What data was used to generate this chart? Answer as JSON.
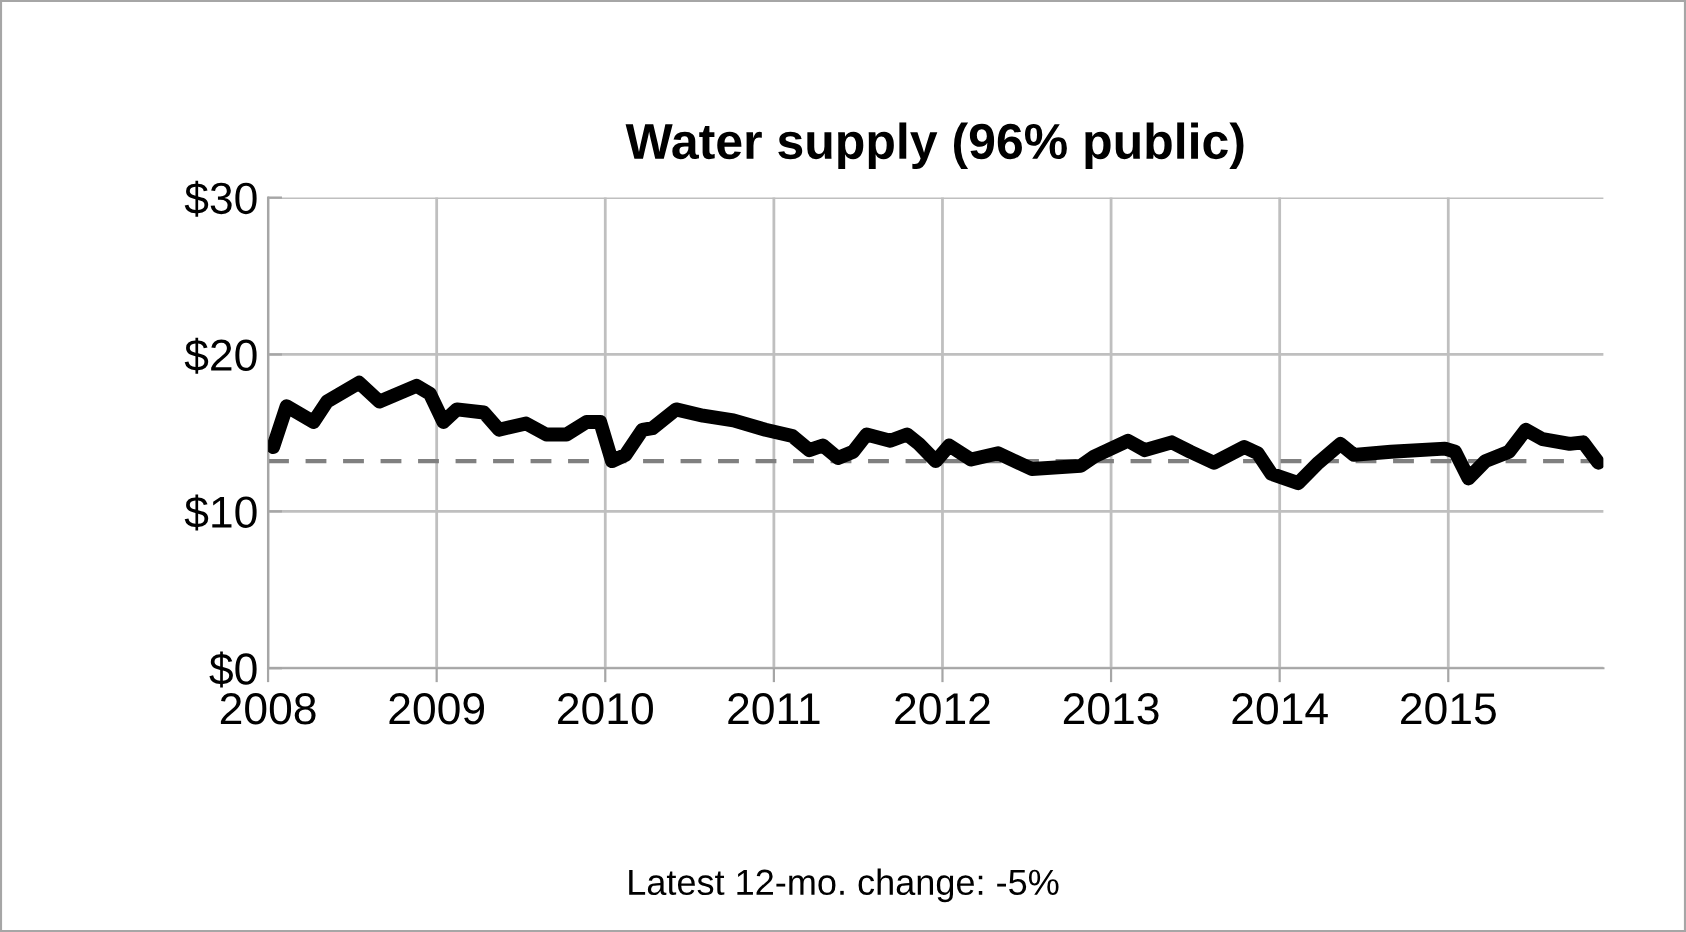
{
  "chart_data": {
    "type": "line",
    "title": "Water supply (96% public)",
    "x": [
      2008.03,
      2008.11,
      2008.27,
      2008.35,
      2008.54,
      2008.66,
      2008.88,
      2008.96,
      2009.04,
      2009.12,
      2009.28,
      2009.37,
      2009.53,
      2009.65,
      2009.77,
      2009.89,
      2009.97,
      2010.04,
      2010.12,
      2010.22,
      2010.28,
      2010.42,
      2010.58,
      2010.76,
      2010.95,
      2011.11,
      2011.21,
      2011.29,
      2011.38,
      2011.47,
      2011.55,
      2011.69,
      2011.79,
      2011.86,
      2011.96,
      2012.04,
      2012.17,
      2012.33,
      2012.53,
      2012.82,
      2012.9,
      2013.1,
      2013.2,
      2013.36,
      2013.47,
      2013.61,
      2013.79,
      2013.87,
      2013.95,
      2014.11,
      2014.23,
      2014.36,
      2014.44,
      2014.66,
      2014.98,
      2015.04,
      2015.12,
      2015.22,
      2015.36,
      2015.46,
      2015.56,
      2015.72,
      2015.8,
      2015.89
    ],
    "series": [
      {
        "color": "#000000",
        "values": [
          14.1,
          16.7,
          15.7,
          17.0,
          18.2,
          17.0,
          18.0,
          17.5,
          15.7,
          16.5,
          16.3,
          15.2,
          15.6,
          14.9,
          14.9,
          15.7,
          15.7,
          13.2,
          13.6,
          15.2,
          15.3,
          16.5,
          16.1,
          15.8,
          15.2,
          14.8,
          13.9,
          14.2,
          13.4,
          13.8,
          14.9,
          14.5,
          14.9,
          14.3,
          13.2,
          14.2,
          13.3,
          13.7,
          12.7,
          12.9,
          13.5,
          14.5,
          13.9,
          14.4,
          13.8,
          13.1,
          14.1,
          13.7,
          12.4,
          11.8,
          13.1,
          14.3,
          13.6,
          13.8,
          14.0,
          13.8,
          12.1,
          13.2,
          13.8,
          15.2,
          14.6,
          14.3,
          14.4,
          13.1
        ]
      }
    ],
    "xlim": [
      2008,
      2015.92
    ],
    "xticks": [
      2008,
      2009,
      2010,
      2011,
      2012,
      2013,
      2014,
      2015
    ],
    "ylim": [
      0,
      30
    ],
    "yticks": [
      {
        "value": 0,
        "label": "$0"
      },
      {
        "value": 10,
        "label": "$10"
      },
      {
        "value": 20,
        "label": "$20"
      },
      {
        "value": 30,
        "label": "$30"
      }
    ],
    "ref_lines": [
      {
        "axis": "y",
        "value": 13.2,
        "color": "#808080",
        "line_style": "dashed"
      }
    ],
    "annotations": [
      "Latest 12-mo. change: -5%"
    ],
    "grid": true,
    "line_style": "solid",
    "marker": "none",
    "legend": false
  }
}
